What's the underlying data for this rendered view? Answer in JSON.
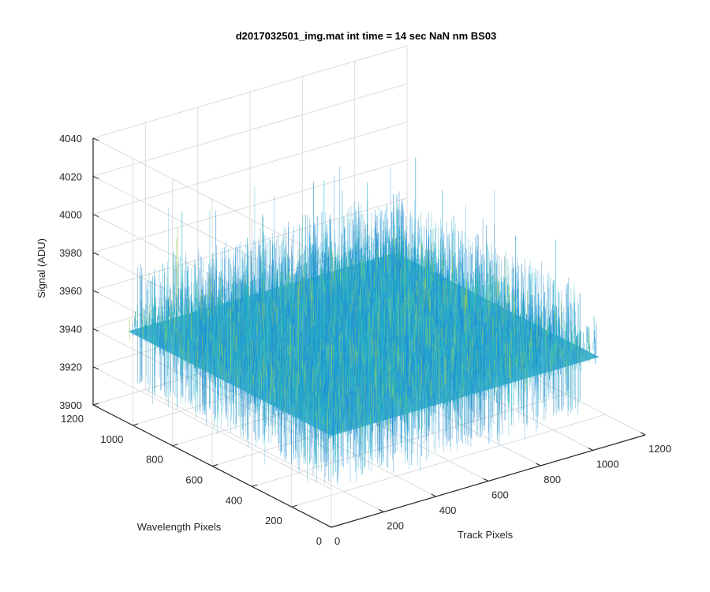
{
  "chart_data": {
    "type": "surface3d",
    "title": "d2017032501_img.mat int time = 14 sec  NaN nm BS03",
    "xlabel": "Track Pixels",
    "ylabel": "Wavelength Pixels",
    "zlabel": "Signal (ADU)",
    "xlim": [
      0,
      1200
    ],
    "ylim": [
      0,
      1200
    ],
    "zlim": [
      3900,
      4040
    ],
    "xticks": [
      "0",
      "200",
      "400",
      "600",
      "800",
      "1000",
      "1200"
    ],
    "yticks": [
      "0",
      "200",
      "400",
      "600",
      "800",
      "1000",
      "1200"
    ],
    "zticks": [
      "3900",
      "3920",
      "3940",
      "3960",
      "3980",
      "4000",
      "4020",
      "4040"
    ],
    "grid": true,
    "surface": {
      "x_range": [
        0,
        1024
      ],
      "y_range": [
        0,
        1024
      ],
      "mean_signal": 3948,
      "noise_band": [
        3925,
        3975
      ],
      "spike_max": 4010,
      "colormap": [
        "#0072BD",
        "#1E90D6",
        "#21B0C6",
        "#4FC1A8",
        "#9ACD5A"
      ]
    }
  }
}
